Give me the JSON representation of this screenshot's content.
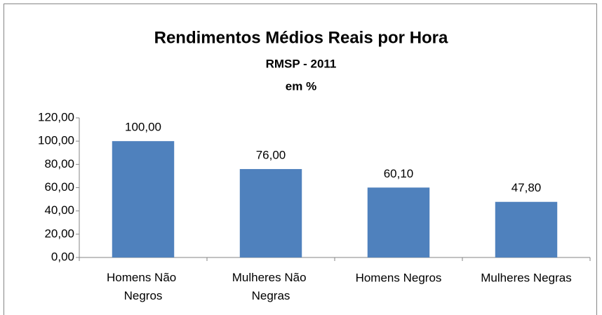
{
  "chart_data": {
    "type": "bar",
    "title": "Rendimentos Médios Reais por Hora",
    "subtitle": [
      "RMSP - 2011",
      "em %"
    ],
    "categories": [
      "Homens Não Negros",
      "Mulheres Não Negras",
      "Homens Negros",
      "Mulheres Negras"
    ],
    "values": [
      100,
      76,
      60.1,
      47.8
    ],
    "value_labels": [
      "100,00",
      "76,00",
      "60,10",
      "47,80"
    ],
    "color": "#4f81bd",
    "ylim": [
      0,
      120
    ],
    "yticks": [
      {
        "value": 0,
        "label": "0,00"
      },
      {
        "value": 20,
        "label": "20,00"
      },
      {
        "value": 40,
        "label": "40,00"
      },
      {
        "value": 60,
        "label": "60,00"
      },
      {
        "value": 80,
        "label": "80,00"
      },
      {
        "value": 100,
        "label": "100,00"
      },
      {
        "value": 120,
        "label": "120,00"
      }
    ],
    "grid": false
  }
}
